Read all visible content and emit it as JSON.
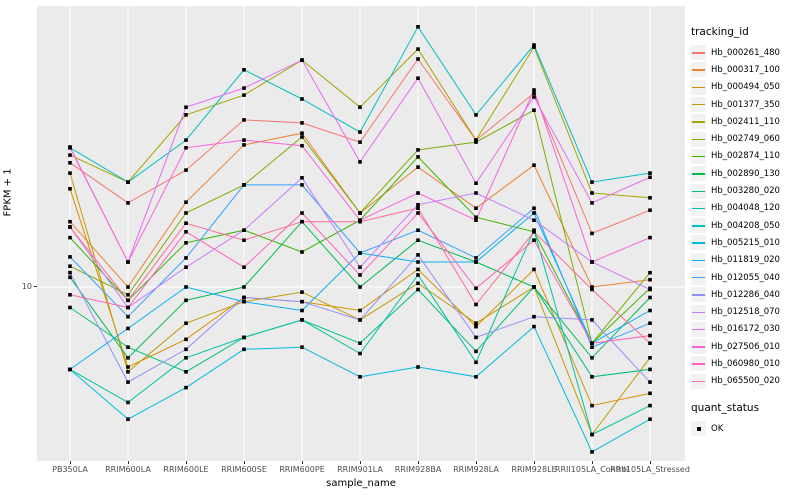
{
  "chart": {
    "y_axis": {
      "label": "FPKM + 1",
      "tick": "10",
      "scale": "log10"
    },
    "x_axis": {
      "label": "sample_name"
    },
    "legend": {
      "tracking_title": "tracking_id",
      "quant_title": "quant_status",
      "quant_items": [
        {
          "label": "OK",
          "marker": "black-square"
        }
      ]
    },
    "colors": {
      "panel_background": "#EBEBEB",
      "gridline": "#FFFFFF",
      "tick_text": "#4D4D4D",
      "marker": "#000000"
    }
  },
  "chart_data": {
    "type": "line",
    "title": "",
    "xlabel": "sample_name",
    "ylabel": "FPKM + 1",
    "yscale": "log10",
    "ylim": [
      2.4,
      95
    ],
    "yticks": [
      10
    ],
    "grid": "major",
    "legend_position": "right",
    "point_marker": "filled-square-black (quant_status = OK)",
    "categories": [
      "PB350LA",
      "RRIM600LA",
      "RRIM600LE",
      "RRIM600SE",
      "RRIM600PE",
      "RRIM901LA",
      "RRIM928BA",
      "RRIM928LA",
      "RRIM928LE",
      "RRII105LA_Control",
      "RRII105LA_Stressed"
    ],
    "series": [
      {
        "name": "Hb_000261_480",
        "color": "#F8766D",
        "values": [
          26.8,
          19.5,
          25.3,
          37.7,
          36.8,
          31.6,
          61.1,
          32.1,
          46.6,
          15.3,
          18.4
        ]
      },
      {
        "name": "Hb_000317_100",
        "color": "#EA8331",
        "values": [
          16.8,
          10.0,
          19.6,
          30.9,
          33.9,
          18.0,
          25.9,
          18.7,
          26.3,
          10.0,
          10.6
        ]
      },
      {
        "name": "Hb_000494_050",
        "color": "#D89000",
        "values": [
          21.8,
          5.3,
          6.6,
          9.2,
          8.9,
          8.3,
          11.5,
          7.3,
          11.5,
          3.9,
          4.3
        ]
      },
      {
        "name": "Hb_001377_350",
        "color": "#C09B00",
        "values": [
          24.7,
          5.1,
          7.5,
          8.9,
          9.6,
          7.7,
          10.3,
          7.5,
          10.0,
          3.1,
          5.7
        ]
      },
      {
        "name": "Hb_002411_110",
        "color": "#A3A500",
        "values": [
          28.5,
          23.0,
          39.2,
          45.9,
          60.6,
          41.7,
          66.1,
          32.1,
          67.2,
          21.1,
          20.3
        ]
      },
      {
        "name": "Hb_002749_060",
        "color": "#7CAE00",
        "values": [
          11.8,
          9.4,
          18.0,
          22.5,
          32.9,
          18.0,
          29.7,
          31.6,
          40.7,
          6.4,
          11.2
        ]
      },
      {
        "name": "Hb_002874_110",
        "color": "#39B600",
        "values": [
          14.8,
          9.0,
          14.2,
          15.7,
          13.2,
          17.0,
          28.1,
          17.4,
          15.5,
          6.4,
          9.9
        ]
      },
      {
        "name": "Hb_002890_130",
        "color": "#00BB4E",
        "values": [
          10.8,
          5.7,
          9.0,
          10.0,
          16.8,
          10.0,
          14.5,
          12.2,
          10.0,
          5.7,
          9.2
        ]
      },
      {
        "name": "Hb_003280_020",
        "color": "#00BF7D",
        "values": [
          8.5,
          6.2,
          5.1,
          6.7,
          7.7,
          6.4,
          9.8,
          6.0,
          10.0,
          4.9,
          5.2
        ]
      },
      {
        "name": "Hb_004048_120",
        "color": "#00C1A3",
        "values": [
          5.2,
          4.0,
          5.7,
          6.7,
          7.7,
          5.9,
          11.0,
          5.5,
          15.7,
          3.1,
          3.9
        ]
      },
      {
        "name": "Hb_004208_050",
        "color": "#00BFC4",
        "values": [
          30.2,
          23.0,
          32.1,
          56.1,
          44.5,
          34.2,
          78.9,
          39.2,
          68.3,
          23.0,
          24.7
        ]
      },
      {
        "name": "Hb_005215_010",
        "color": "#00BAE0",
        "values": [
          5.2,
          3.5,
          4.5,
          6.1,
          6.2,
          4.9,
          5.3,
          4.9,
          7.3,
          2.7,
          3.5
        ]
      },
      {
        "name": "Hb_011819_020",
        "color": "#00B0F6",
        "values": [
          5.2,
          7.2,
          10.0,
          8.9,
          8.3,
          13.1,
          12.2,
          12.2,
          18.0,
          6.4,
          8.3
        ]
      },
      {
        "name": "Hb_012055_040",
        "color": "#35A2FF",
        "values": [
          12.7,
          7.9,
          12.6,
          22.5,
          22.5,
          13.1,
          15.7,
          12.6,
          18.7,
          6.2,
          7.5
        ]
      },
      {
        "name": "Hb_012286_040",
        "color": "#9590FF",
        "values": [
          11.2,
          4.7,
          6.1,
          9.2,
          8.9,
          7.7,
          12.9,
          6.7,
          7.9,
          7.7,
          4.7
        ]
      },
      {
        "name": "Hb_012518_070",
        "color": "#C77CFF",
        "values": [
          16.1,
          8.5,
          11.7,
          15.7,
          23.8,
          11.7,
          19.2,
          21.1,
          17.0,
          12.2,
          9.8
        ]
      },
      {
        "name": "Hb_016172_030",
        "color": "#E76BF3",
        "values": [
          30.2,
          12.2,
          41.7,
          48.5,
          60.6,
          27.0,
          52.5,
          22.8,
          45.2,
          19.5,
          23.9
        ]
      },
      {
        "name": "Hb_027506_010",
        "color": "#FA62DB",
        "values": [
          30.4,
          12.2,
          30.2,
          32.1,
          30.7,
          17.0,
          21.1,
          17.0,
          47.8,
          12.2,
          14.8
        ]
      },
      {
        "name": "Hb_060980_010",
        "color": "#FF62BC",
        "values": [
          9.4,
          8.5,
          15.5,
          11.7,
          18.0,
          11.0,
          18.0,
          9.9,
          14.5,
          6.4,
          6.8
        ]
      },
      {
        "name": "Hb_065500_020",
        "color": "#FF6A98",
        "values": [
          16.1,
          9.0,
          16.6,
          14.5,
          16.8,
          16.8,
          18.7,
          8.7,
          15.5,
          9.8,
          6.4
        ]
      }
    ]
  }
}
